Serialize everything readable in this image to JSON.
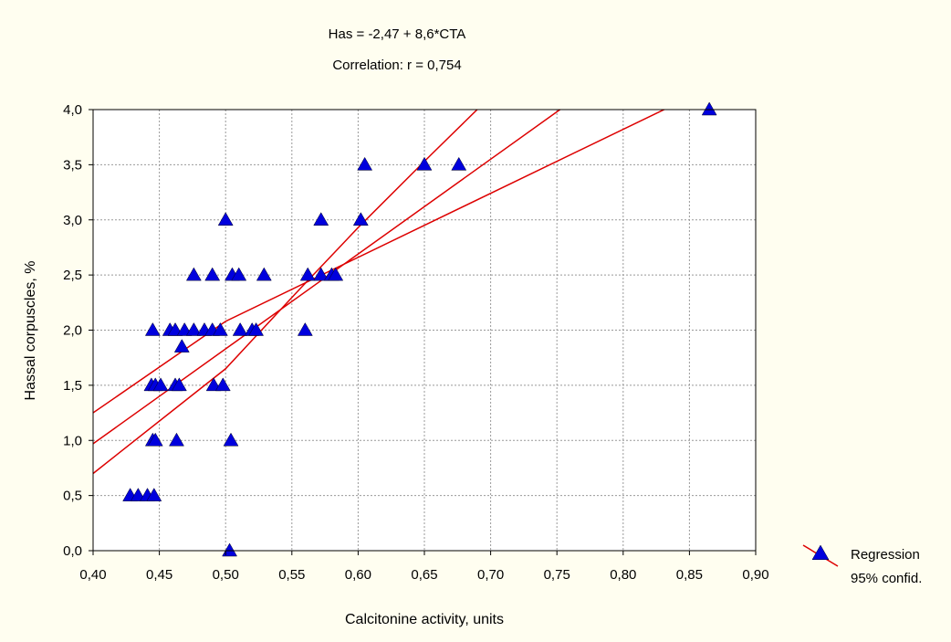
{
  "chart_data": {
    "type": "scatter",
    "title": "Has = -2,47 + 8,6*CTA",
    "subtitle": "Correlation: r = 0,754",
    "xlabel": "Calcitonine activity, units",
    "ylabel": "Hassal corpuscles, %",
    "xlim": [
      0.4,
      0.9
    ],
    "ylim": [
      0.0,
      4.0
    ],
    "x_ticks": [
      0.4,
      0.45,
      0.5,
      0.55,
      0.6,
      0.65,
      0.7,
      0.75,
      0.8,
      0.85,
      0.9
    ],
    "x_tick_labels": [
      "0,40",
      "0,45",
      "0,50",
      "0,55",
      "0,60",
      "0,65",
      "0,70",
      "0,75",
      "0,80",
      "0,85",
      "0,90"
    ],
    "y_ticks": [
      0.0,
      0.5,
      1.0,
      1.5,
      2.0,
      2.5,
      3.0,
      3.5,
      4.0
    ],
    "y_tick_labels": [
      "0,0",
      "0,5",
      "1,0",
      "1,5",
      "2,0",
      "2,5",
      "3,0",
      "3,5",
      "4,0"
    ],
    "grid": true,
    "legend_position": "bottom-right",
    "legend": [
      "Regression",
      "95% confid."
    ],
    "colors": {
      "marker": "#0000dd",
      "line": "#dd0000",
      "background": "#fffef0",
      "plot_background": "#ffffff",
      "grid": "#999999"
    },
    "marker": "triangle",
    "points": [
      [
        0.428,
        0.5
      ],
      [
        0.434,
        0.5
      ],
      [
        0.441,
        0.5
      ],
      [
        0.446,
        0.5
      ],
      [
        0.445,
        1.0
      ],
      [
        0.447,
        1.0
      ],
      [
        0.463,
        1.0
      ],
      [
        0.504,
        1.0
      ],
      [
        0.444,
        1.5
      ],
      [
        0.447,
        1.5
      ],
      [
        0.451,
        1.5
      ],
      [
        0.462,
        1.5
      ],
      [
        0.465,
        1.5
      ],
      [
        0.491,
        1.5
      ],
      [
        0.498,
        1.5
      ],
      [
        0.467,
        1.85
      ],
      [
        0.445,
        2.0
      ],
      [
        0.458,
        2.0
      ],
      [
        0.462,
        2.0
      ],
      [
        0.469,
        2.0
      ],
      [
        0.476,
        2.0
      ],
      [
        0.484,
        2.0
      ],
      [
        0.49,
        2.0
      ],
      [
        0.496,
        2.0
      ],
      [
        0.511,
        2.0
      ],
      [
        0.52,
        2.0
      ],
      [
        0.523,
        2.0
      ],
      [
        0.56,
        2.0
      ],
      [
        0.476,
        2.5
      ],
      [
        0.49,
        2.5
      ],
      [
        0.505,
        2.5
      ],
      [
        0.51,
        2.5
      ],
      [
        0.529,
        2.5
      ],
      [
        0.562,
        2.5
      ],
      [
        0.572,
        2.5
      ],
      [
        0.58,
        2.5
      ],
      [
        0.583,
        2.5
      ],
      [
        0.5,
        3.0
      ],
      [
        0.572,
        3.0
      ],
      [
        0.602,
        3.0
      ],
      [
        0.605,
        3.5
      ],
      [
        0.65,
        3.5
      ],
      [
        0.676,
        3.5
      ],
      [
        0.865,
        4.0
      ],
      [
        0.503,
        0.0
      ]
    ],
    "regression": {
      "intercept": -2.47,
      "slope": 8.6
    },
    "confidence_band": {
      "upper": [
        [
          0.4,
          1.25
        ],
        [
          0.5,
          2.08
        ],
        [
          0.855,
          4.14
        ]
      ],
      "lower": [
        [
          0.4,
          0.7
        ],
        [
          0.5,
          1.65
        ],
        [
          0.555,
          2.36
        ],
        [
          0.6,
          2.93
        ],
        [
          0.655,
          3.59
        ],
        [
          0.7,
          4.12
        ]
      ]
    }
  }
}
